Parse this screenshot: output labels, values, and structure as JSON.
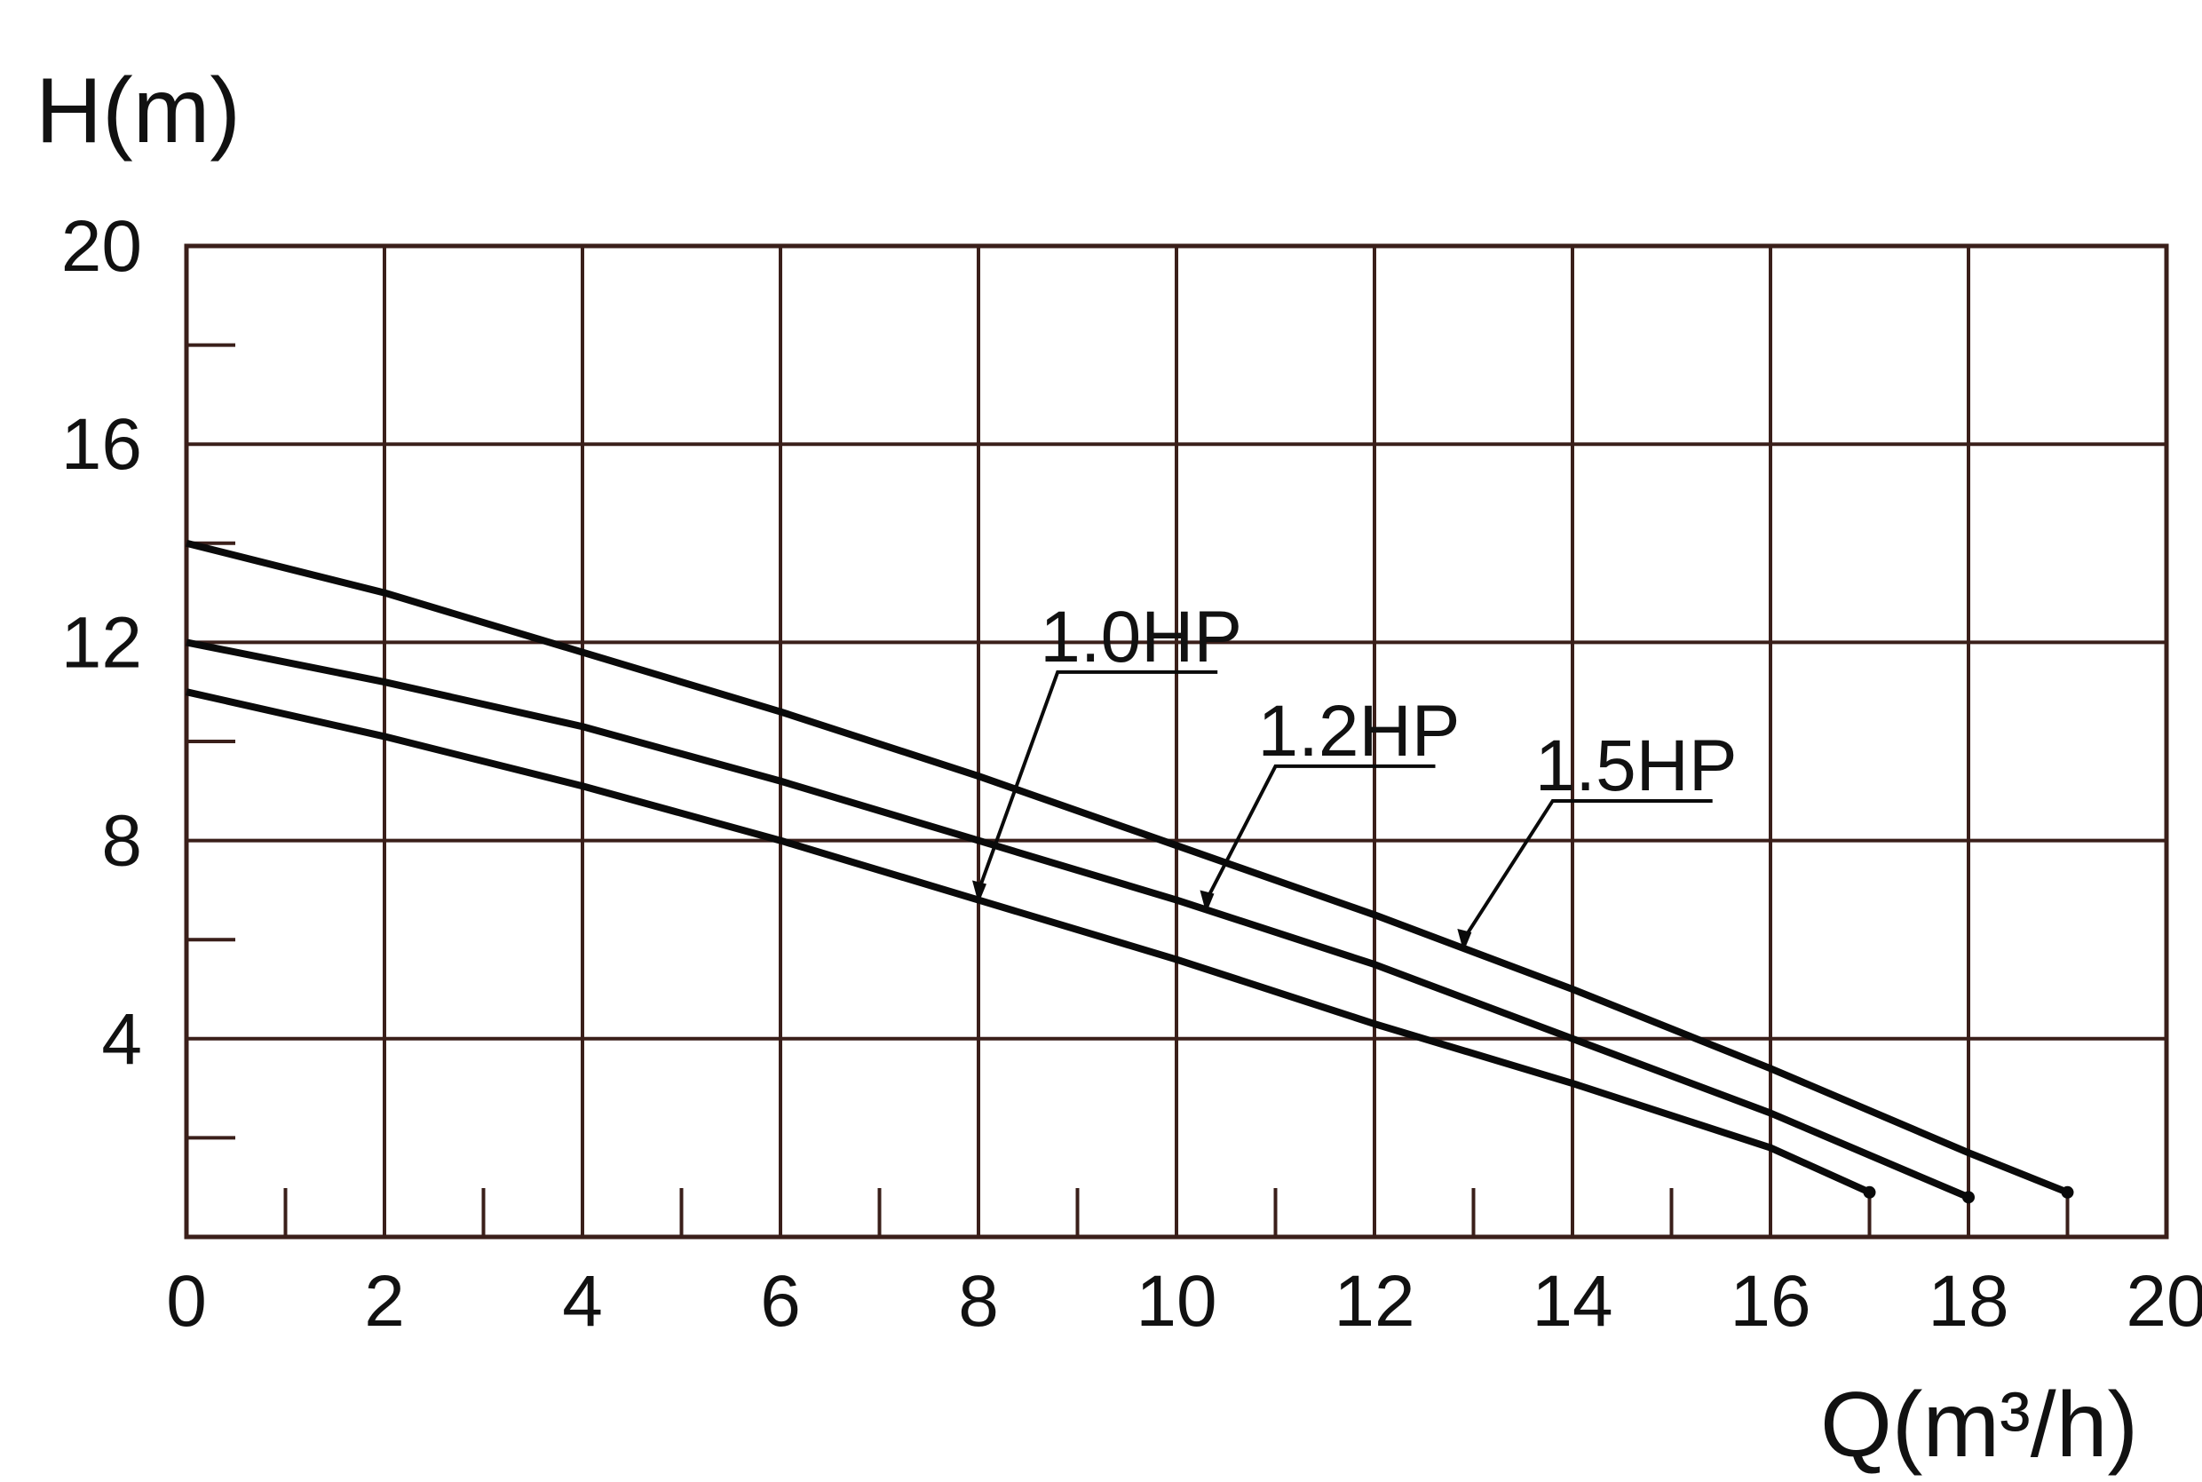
{
  "chart_data": {
    "type": "line",
    "ylabel": "H(m)",
    "xlabel": "Q(m³/h)",
    "xlim": [
      0,
      20
    ],
    "ylim": [
      0,
      20
    ],
    "x_ticks": [
      "0",
      "2",
      "4",
      "6",
      "8",
      "10",
      "12",
      "14",
      "16",
      "18",
      "20"
    ],
    "y_ticks": [
      "4",
      "8",
      "12",
      "16",
      "20"
    ],
    "grid": true,
    "colors": {
      "grid": "#3a1f1a",
      "curve": "#0a0a0a",
      "text": "#111111"
    },
    "series": [
      {
        "name": "1.0HP",
        "x": [
          0,
          2,
          4,
          6,
          8,
          10,
          12,
          14,
          16,
          17
        ],
        "y": [
          11.0,
          10.1,
          9.1,
          8.0,
          6.8,
          5.6,
          4.3,
          3.1,
          1.8,
          0.9
        ]
      },
      {
        "name": "1.2HP",
        "x": [
          0,
          2,
          4,
          6,
          8,
          10,
          12,
          14,
          16,
          18
        ],
        "y": [
          12.0,
          11.2,
          10.3,
          9.2,
          8.0,
          6.8,
          5.5,
          4.0,
          2.5,
          0.8
        ]
      },
      {
        "name": "1.5HP",
        "x": [
          0,
          2,
          4,
          6,
          8,
          10,
          12,
          14,
          16,
          18,
          19
        ],
        "y": [
          14.0,
          13.0,
          11.8,
          10.6,
          9.3,
          7.9,
          6.5,
          5.0,
          3.4,
          1.7,
          0.9
        ]
      }
    ]
  }
}
